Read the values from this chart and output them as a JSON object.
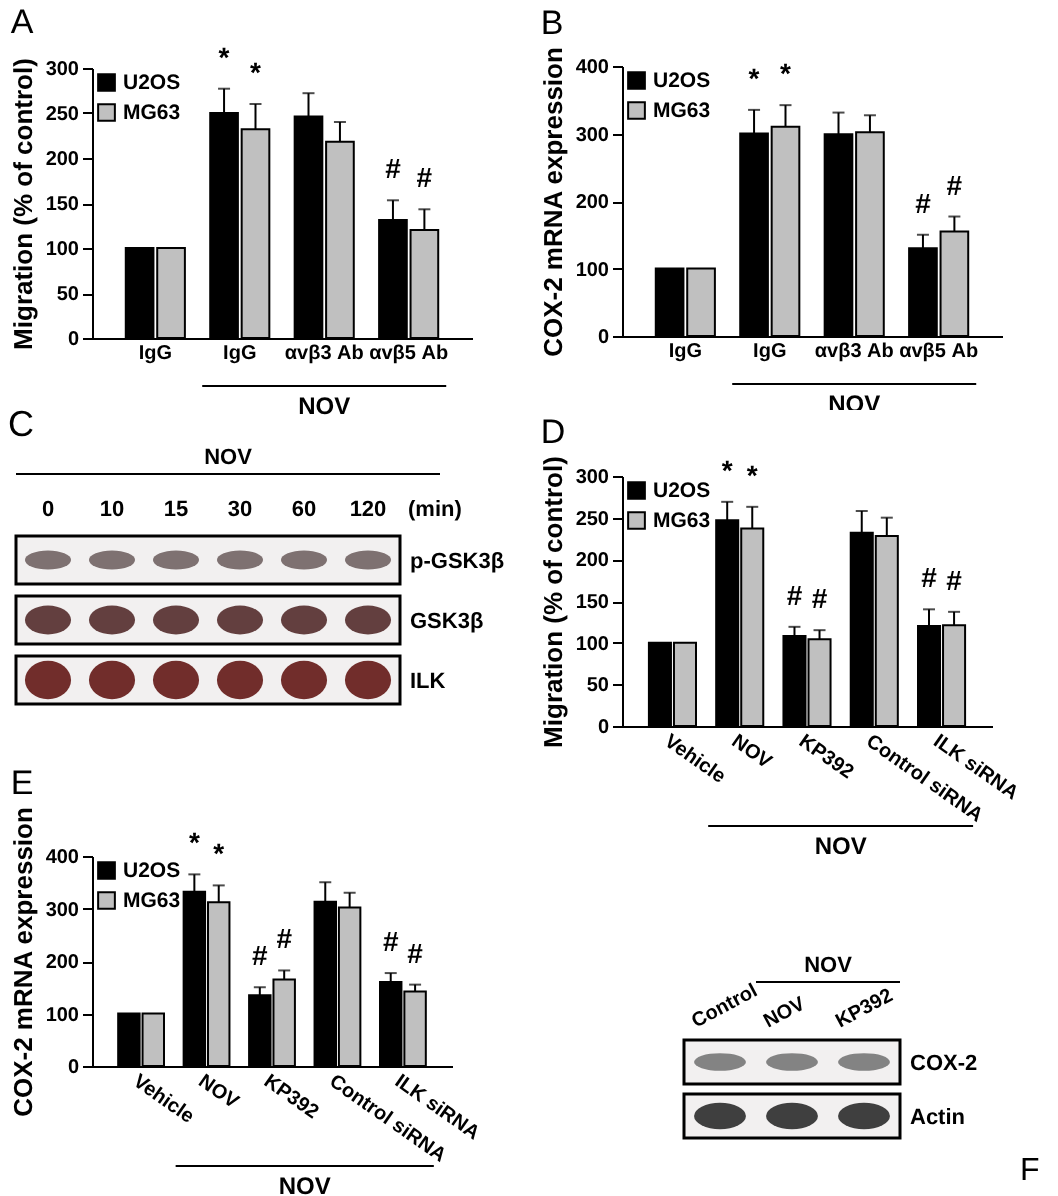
{
  "chart_data": [
    {
      "type": "bar",
      "title": "A",
      "ylabel": "Migration (% of control)",
      "xlabel": "NOV",
      "categories": [
        "IgG",
        "IgG",
        "αvβ3 Ab",
        "αvβ5 Ab"
      ],
      "ylim": [
        0,
        300
      ],
      "yticks": [
        0,
        50,
        100,
        150,
        200,
        250,
        300
      ],
      "legend": "top left",
      "series": [
        {
          "name": "U2OS",
          "color": "#000000",
          "values": [
            100,
            250,
            246,
            131
          ],
          "errors": [
            null,
            27,
            26,
            22
          ],
          "value_labels": [
            null,
            "*",
            null,
            "#"
          ]
        },
        {
          "name": "MG63",
          "color": "#c0c0c0",
          "values": [
            100,
            232,
            218,
            120
          ],
          "errors": [
            null,
            28,
            22,
            23
          ],
          "value_labels": [
            null,
            "*",
            null,
            "#"
          ]
        }
      ]
    },
    {
      "type": "bar",
      "title": "B",
      "ylabel": "COX-2 mRNA expression",
      "xlabel": "NOV",
      "categories": [
        "IgG",
        "IgG",
        "αvβ3 Ab",
        "αvβ5 Ab"
      ],
      "ylim": [
        0,
        400
      ],
      "yticks": [
        0,
        100,
        200,
        300,
        400
      ],
      "legend": "top left",
      "series": [
        {
          "name": "U2OS",
          "color": "#000000",
          "values": [
            100,
            300,
            299,
            130
          ],
          "errors": [
            null,
            35,
            32,
            20
          ],
          "value_labels": [
            null,
            "*",
            null,
            "#"
          ]
        },
        {
          "name": "MG63",
          "color": "#c0c0c0",
          "values": [
            100,
            310,
            302,
            155
          ],
          "errors": [
            null,
            32,
            25,
            22
          ],
          "value_labels": [
            null,
            "*",
            null,
            "#"
          ]
        }
      ]
    },
    {
      "type": "other",
      "title": "C",
      "categories": [
        "0",
        "10",
        "15",
        "30",
        "60",
        "120"
      ],
      "y_categories": [
        "p-GSK3β",
        "GSK3β",
        "ILK"
      ],
      "annotations": [
        "NOV",
        "(min)"
      ]
    },
    {
      "type": "bar",
      "title": "D",
      "ylabel": "Migration (% of control)",
      "xlabel": "NOV",
      "categories": [
        "Vehicle",
        "NOV",
        "KP392",
        "Control siRNA",
        "ILK siRNA"
      ],
      "ylim": [
        0,
        300
      ],
      "yticks": [
        0,
        50,
        100,
        150,
        200,
        250,
        300
      ],
      "legend": "top left",
      "series": [
        {
          "name": "U2OS",
          "color": "#000000",
          "values": [
            100,
            247,
            108,
            232,
            120
          ],
          "errors": [
            null,
            22,
            11,
            26,
            20
          ],
          "value_labels": [
            null,
            "*",
            "#",
            null,
            "#"
          ]
        },
        {
          "name": "MG63",
          "color": "#c0c0c0",
          "values": [
            100,
            237,
            104,
            228,
            121
          ],
          "errors": [
            null,
            26,
            11,
            22,
            16
          ],
          "value_labels": [
            null,
            "*",
            "#",
            null,
            "#"
          ]
        }
      ]
    },
    {
      "type": "bar",
      "title": "E",
      "ylabel": "COX-2 mRNA expression",
      "xlabel": "NOV",
      "categories": [
        "Vehicle",
        "NOV",
        "KP392",
        "Control siRNA",
        "ILK siRNA"
      ],
      "ylim": [
        0,
        400
      ],
      "yticks": [
        0,
        100,
        200,
        300,
        400
      ],
      "legend": "top left",
      "series": [
        {
          "name": "U2OS",
          "color": "#000000",
          "values": [
            100,
            332,
            135,
            313,
            160
          ],
          "errors": [
            null,
            33,
            15,
            37,
            17
          ],
          "value_labels": [
            null,
            "*",
            "#",
            null,
            "#"
          ]
        },
        {
          "name": "MG63",
          "color": "#c0c0c0",
          "values": [
            100,
            312,
            165,
            302,
            142
          ],
          "errors": [
            null,
            32,
            17,
            28,
            13
          ],
          "value_labels": [
            null,
            "*",
            "#",
            null,
            "#"
          ]
        }
      ]
    },
    {
      "type": "other",
      "title": "F",
      "categories": [
        "Control",
        "NOV",
        "KP392"
      ],
      "y_categories": [
        "COX-2",
        "Actin"
      ],
      "annotations": [
        "NOV"
      ]
    }
  ]
}
